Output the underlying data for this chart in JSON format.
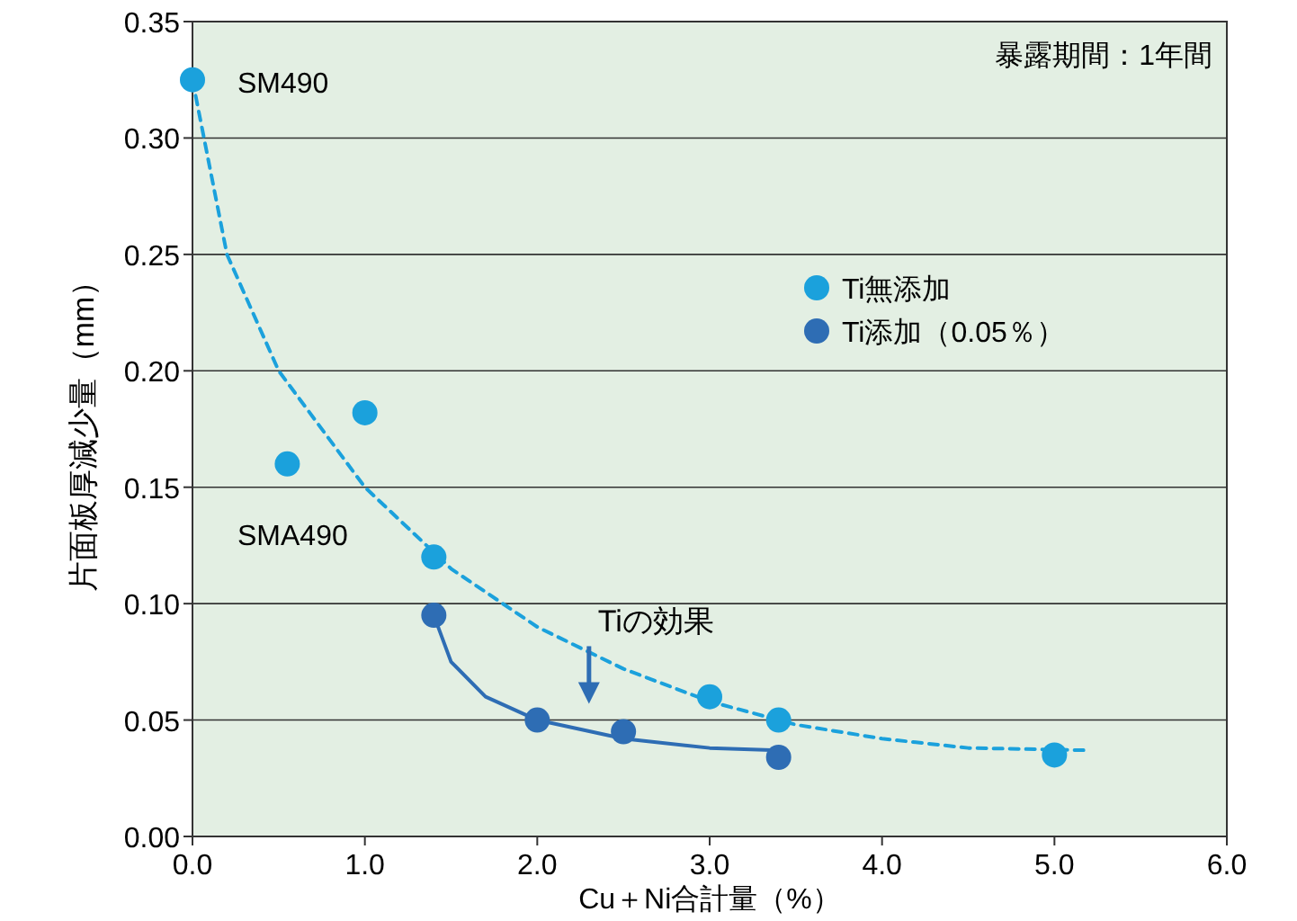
{
  "chart_data": {
    "type": "scatter",
    "xlabel": "Cu＋Ni合計量（%）",
    "ylabel": "片面板厚減少量（mm）",
    "xlim": [
      0,
      6
    ],
    "ylim": [
      0,
      0.35
    ],
    "xticks": [
      {
        "value": 0,
        "label": "0.0"
      },
      {
        "value": 1,
        "label": "1.0"
      },
      {
        "value": 2,
        "label": "2.0"
      },
      {
        "value": 3,
        "label": "3.0"
      },
      {
        "value": 4,
        "label": "4.0"
      },
      {
        "value": 5,
        "label": "5.0"
      },
      {
        "value": 6,
        "label": "6.0"
      }
    ],
    "yticks": [
      {
        "value": 0,
        "label": "0.00"
      },
      {
        "value": 0.05,
        "label": "0.05"
      },
      {
        "value": 0.1,
        "label": "0.10"
      },
      {
        "value": 0.15,
        "label": "0.15"
      },
      {
        "value": 0.2,
        "label": "0.20"
      },
      {
        "value": 0.25,
        "label": "0.25"
      },
      {
        "value": 0.3,
        "label": "0.30"
      },
      {
        "value": 0.35,
        "label": "0.35"
      }
    ],
    "grid": "y",
    "legend": "top right",
    "series": [
      {
        "type": "line",
        "marker": "none",
        "line_style": "dashed",
        "color": "#1ba1dc",
        "x": [
          0,
          0.2,
          0.5,
          1,
          1.5,
          2,
          2.5,
          3,
          3.5,
          4,
          4.5,
          5.2
        ],
        "values": [
          0.325,
          0.25,
          0.2,
          0.15,
          0.115,
          0.09,
          0.072,
          0.058,
          0.048,
          0.042,
          0.038,
          0.037
        ]
      },
      {
        "type": "line",
        "marker": "none",
        "line_style": "solid",
        "color": "#2e6db4",
        "x": [
          1.4,
          1.5,
          1.7,
          2,
          2.5,
          3,
          3.4
        ],
        "values": [
          0.095,
          0.075,
          0.06,
          0.05,
          0.042,
          0.038,
          0.037
        ]
      },
      {
        "marker": "circle",
        "name": "Ti無添加",
        "color": "#1ba1dc",
        "x": [
          0,
          0.55,
          1.0,
          1.4,
          3.0,
          3.4,
          5.0
        ],
        "values": [
          0.325,
          0.16,
          0.182,
          0.12,
          0.06,
          0.05,
          0.035
        ]
      },
      {
        "marker": "circle",
        "name": "Ti添加（0.05％）",
        "color": "#2e6db4",
        "x": [
          1.4,
          2.0,
          2.5,
          3.4
        ],
        "values": [
          0.095,
          0.05,
          0.045,
          0.034
        ]
      }
    ],
    "annotations": [
      {
        "text": "SM490",
        "x": 0,
        "y": 0.325
      },
      "SMA490",
      "Tiの効果",
      "暴露期間：1年間"
    ]
  }
}
